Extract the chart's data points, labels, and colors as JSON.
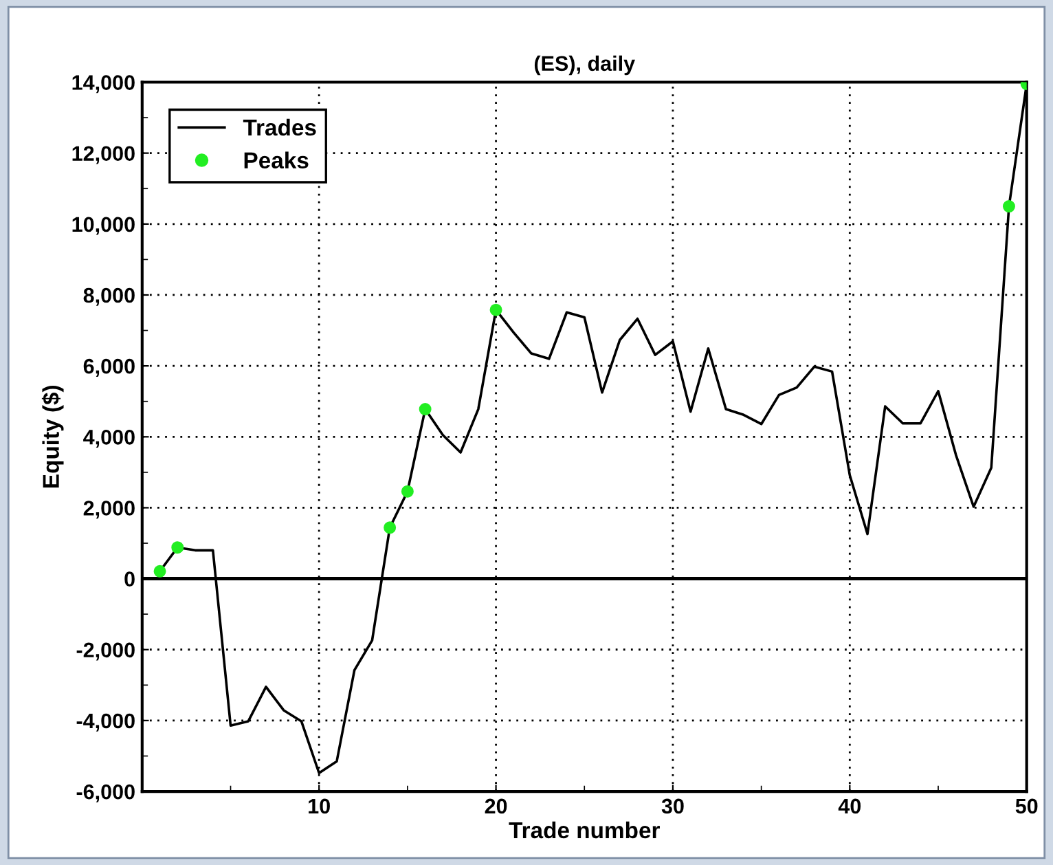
{
  "chart_data": {
    "type": "line",
    "title": "(ES), daily",
    "xlabel": "Trade number",
    "ylabel": "Equity ($)",
    "x": [
      1,
      2,
      3,
      4,
      5,
      6,
      7,
      8,
      9,
      10,
      11,
      12,
      13,
      14,
      15,
      16,
      17,
      18,
      19,
      20,
      21,
      22,
      23,
      24,
      25,
      26,
      27,
      28,
      29,
      30,
      31,
      32,
      33,
      34,
      35,
      36,
      37,
      38,
      39,
      40,
      41,
      42,
      43,
      44,
      45,
      46,
      47,
      48,
      49,
      50
    ],
    "series": [
      {
        "name": "Trades",
        "type": "line",
        "color": "#000000",
        "marker": "none",
        "line_style": "solid",
        "values": [
          210,
          880,
          800,
          800,
          -4140,
          -4020,
          -3050,
          -3710,
          -4020,
          -5480,
          -5150,
          -2580,
          -1740,
          1440,
          2460,
          4780,
          4050,
          3560,
          4780,
          7580,
          6940,
          6350,
          6200,
          7510,
          7370,
          5250,
          6730,
          7330,
          6310,
          6690,
          4710,
          6490,
          4780,
          4620,
          4360,
          5180,
          5390,
          5980,
          5840,
          2920,
          1260,
          4860,
          4380,
          4380,
          5290,
          3490,
          2030,
          3130,
          10500,
          13950
        ]
      },
      {
        "name": "Peaks",
        "type": "scatter",
        "color": "#22ee22",
        "marker": "circle",
        "x": [
          1,
          2,
          14,
          15,
          16,
          20,
          49,
          50
        ],
        "values": [
          210,
          880,
          1440,
          2460,
          4780,
          7580,
          10500,
          13950
        ]
      }
    ],
    "xlim": [
      0,
      50
    ],
    "xticks": [
      {
        "value": 5,
        "label": null
      },
      10,
      {
        "value": 15,
        "label": null
      },
      20,
      {
        "value": 25,
        "label": null
      },
      30,
      {
        "value": 35,
        "label": null
      },
      40,
      {
        "value": 45,
        "label": null
      },
      50
    ],
    "ylim": [
      -6000,
      14000
    ],
    "yticks": [
      {
        "value": -6000,
        "label": "-6,000"
      },
      {
        "value": -5000,
        "label": null
      },
      {
        "value": -4000,
        "label": "-4,000"
      },
      {
        "value": -3000,
        "label": null
      },
      {
        "value": -2000,
        "label": "-2,000"
      },
      {
        "value": -1000,
        "label": null
      },
      0,
      {
        "value": 1000,
        "label": null
      },
      {
        "value": 2000,
        "label": "2,000"
      },
      {
        "value": 3000,
        "label": null
      },
      {
        "value": 4000,
        "label": "4,000"
      },
      {
        "value": 5000,
        "label": null
      },
      {
        "value": 6000,
        "label": "6,000"
      },
      {
        "value": 7000,
        "label": null
      },
      {
        "value": 8000,
        "label": "8,000"
      },
      {
        "value": 9000,
        "label": null
      },
      {
        "value": 10000,
        "label": "10,000"
      },
      {
        "value": 11000,
        "label": null
      },
      {
        "value": 12000,
        "label": "12,000"
      },
      {
        "value": 13000,
        "label": null
      },
      {
        "value": 14000,
        "label": "14,000"
      }
    ],
    "ref_lines": [
      {
        "axis": "y",
        "value": 0,
        "color": "#000000",
        "line_style": "solid"
      }
    ],
    "grid": true,
    "legend": "top left"
  }
}
